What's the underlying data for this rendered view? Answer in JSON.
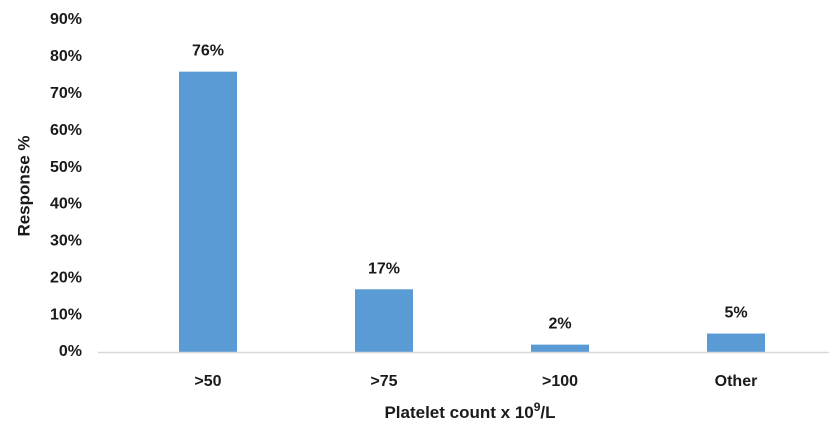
{
  "chart_data": {
    "type": "bar",
    "categories": [
      ">50",
      ">75",
      ">100",
      "Other"
    ],
    "values": [
      76,
      17,
      2,
      5
    ],
    "data_labels": [
      "76%",
      "17%",
      "2%",
      "5%"
    ],
    "title": "",
    "xlabel": "Platelet count x 10",
    "xlabel_superscript": "9",
    "xlabel_suffix": "/L",
    "ylabel": "Response %",
    "ylim": [
      0,
      90
    ],
    "yticks": [
      0,
      10,
      20,
      30,
      40,
      50,
      60,
      70,
      80,
      90
    ],
    "ytick_labels": [
      "0%",
      "10%",
      "20%",
      "30%",
      "40%",
      "50%",
      "60%",
      "70%",
      "80%",
      "90%"
    ],
    "grid": false,
    "legend": "none",
    "bar_color": "#5b9bd5",
    "axis_color": "#d9d9d9"
  }
}
